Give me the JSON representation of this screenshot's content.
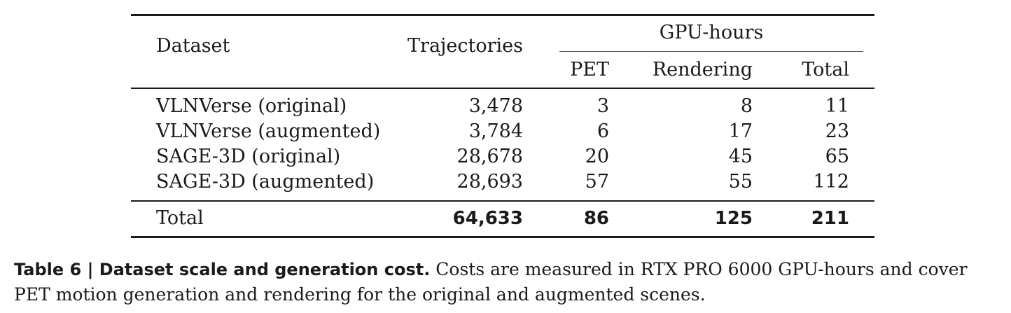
{
  "table": {
    "headers": {
      "dataset": "Dataset",
      "trajectories": "Trajectories",
      "gpu_hours": "GPU-hours",
      "pet": "PET",
      "rendering": "Rendering",
      "total": "Total"
    },
    "rows": [
      {
        "dataset": "VLNVerse (original)",
        "trajectories": "3,478",
        "pet": "3",
        "rendering": "8",
        "total": "11"
      },
      {
        "dataset": "VLNVerse (augmented)",
        "trajectories": "3,784",
        "pet": "6",
        "rendering": "17",
        "total": "23"
      },
      {
        "dataset": "SAGE-3D (original)",
        "trajectories": "28,678",
        "pet": "20",
        "rendering": "45",
        "total": "65"
      },
      {
        "dataset": "SAGE-3D (augmented)",
        "trajectories": "28,693",
        "pet": "57",
        "rendering": "55",
        "total": "112"
      }
    ],
    "total_row": {
      "dataset": "Total",
      "trajectories": "64,633",
      "pet": "86",
      "rendering": "125",
      "total": "211"
    }
  },
  "caption": {
    "label": "Table 6 | Dataset scale and generation cost.",
    "text": " Costs are measured in RTX PRO 6000 GPU-hours and cover PET motion generation and rendering for the original and augmented scenes."
  }
}
